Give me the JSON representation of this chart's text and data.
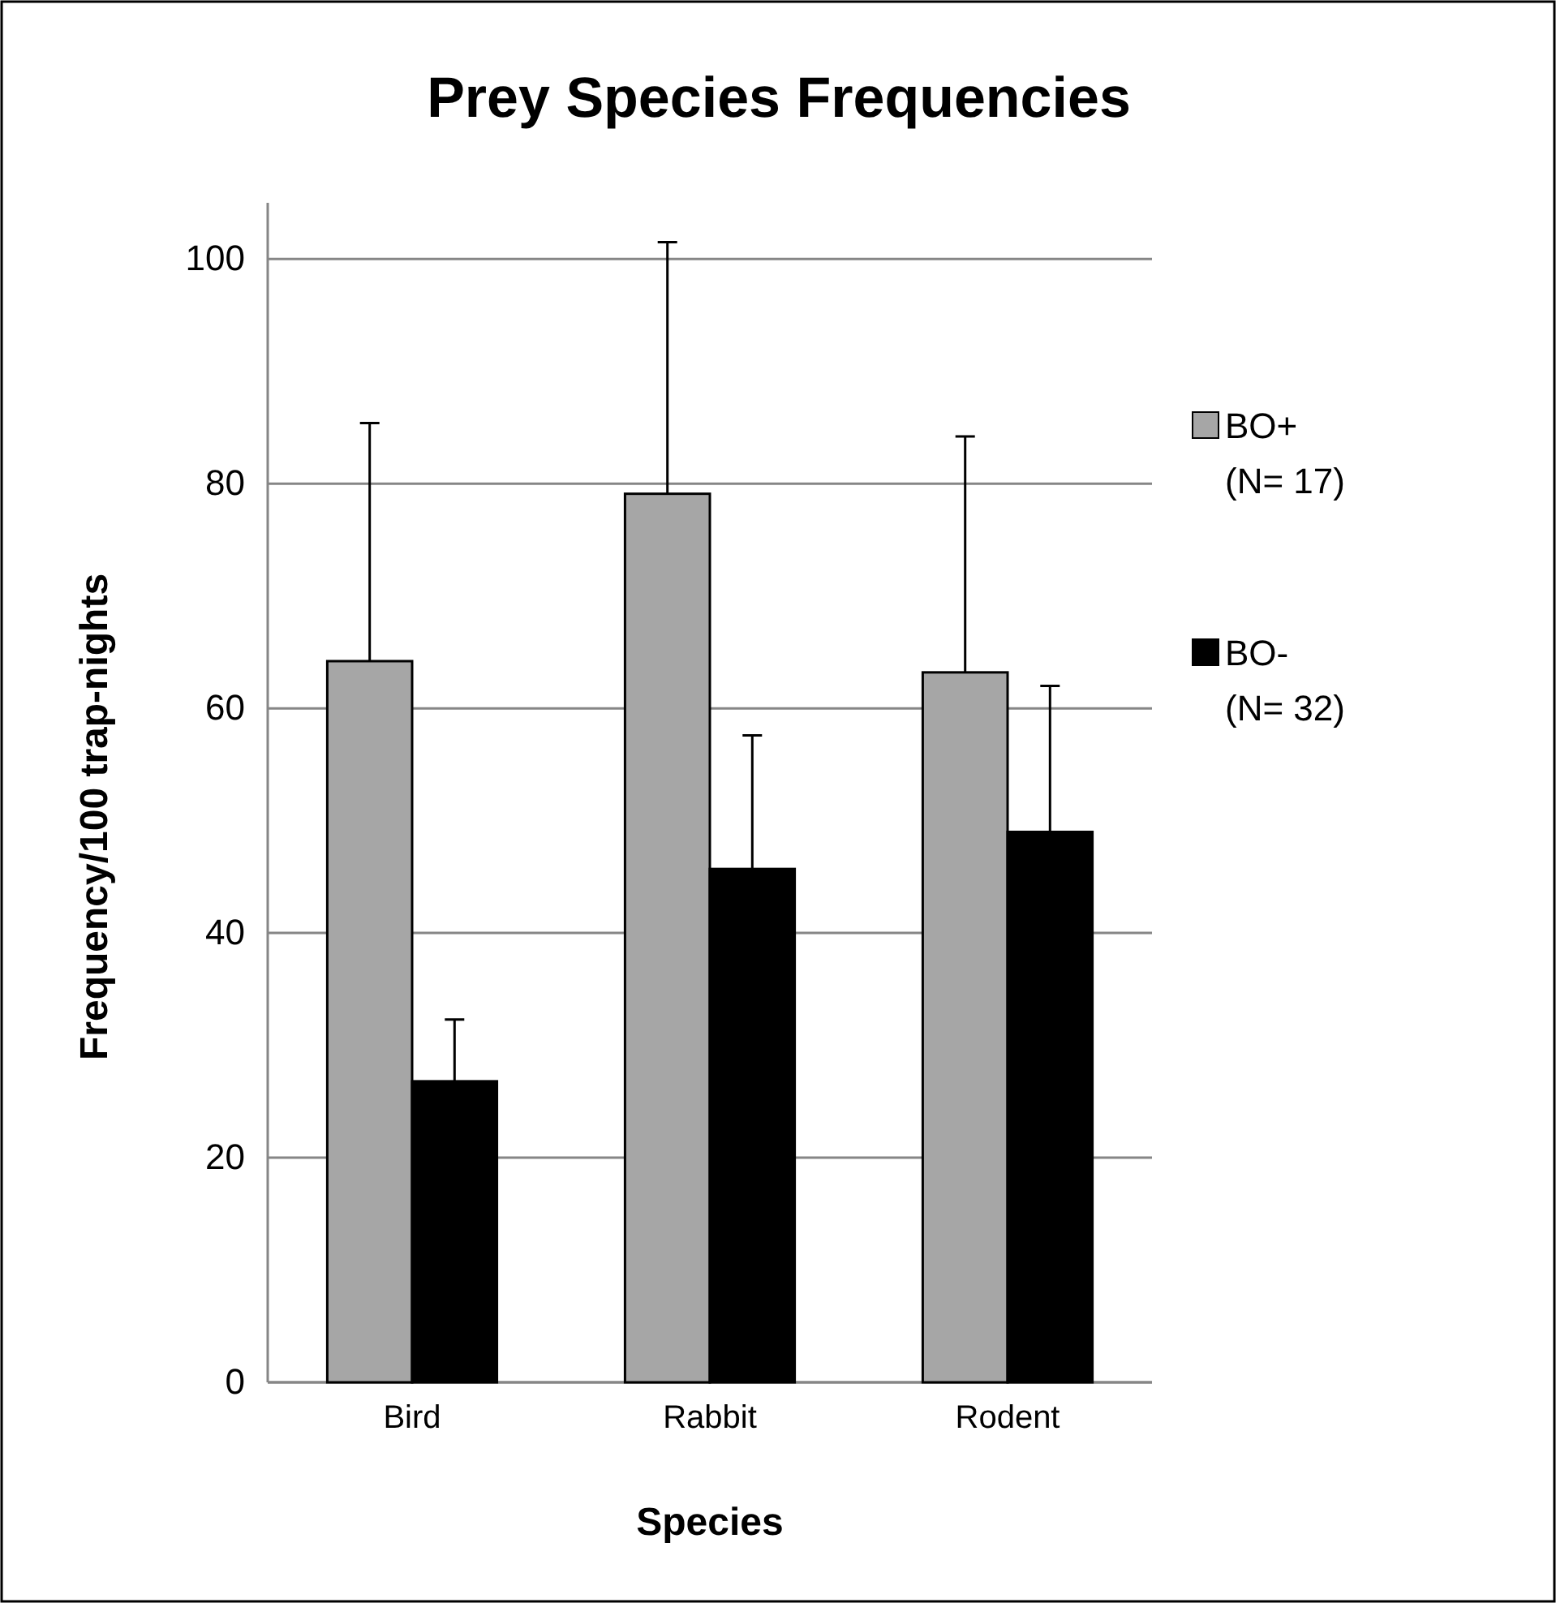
{
  "chart_data": {
    "type": "bar",
    "title": "Prey Species Frequencies",
    "xlabel": "Species",
    "ylabel": "Frequency/100 trap-nights",
    "categories": [
      "Bird",
      "Rabbit",
      "Rodent"
    ],
    "series": [
      {
        "name": "BO+ (N= 17)",
        "color": "#a6a6a6",
        "values": [
          64.2,
          79.1,
          63.2
        ],
        "errors": [
          [
            64.2,
            85.4
          ],
          [
            79.1,
            101.5
          ],
          [
            63.2,
            84.2
          ]
        ]
      },
      {
        "name": "BO- (N= 32)",
        "color": "#000000",
        "values": [
          26.8,
          45.7,
          49.0
        ],
        "errors": [
          [
            26.8,
            32.3
          ],
          [
            45.7,
            57.6
          ],
          [
            49.0,
            62.0
          ]
        ]
      }
    ],
    "ylim": [
      0,
      105
    ],
    "yticks": [
      0,
      20,
      40,
      60,
      80,
      100
    ],
    "grid": "y",
    "legend": "right"
  }
}
